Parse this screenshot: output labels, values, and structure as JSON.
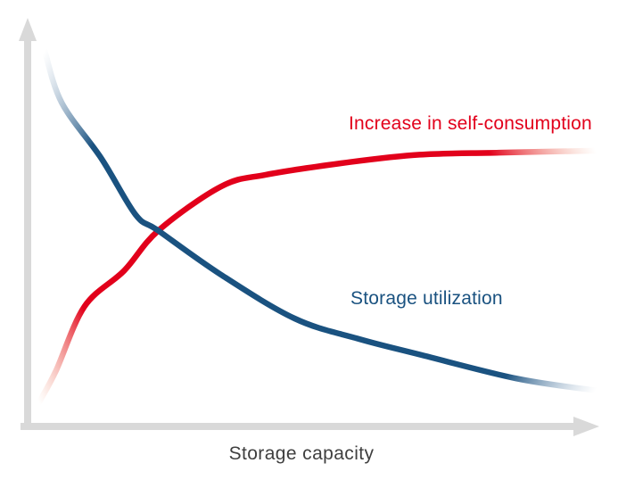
{
  "colors": {
    "red": "#e2001b",
    "red_fade": "#f09a74",
    "blue": "#1a5280",
    "blue_fade": "#9db4cc",
    "axis": "#d9d9d9",
    "axis_label_text": "#3f3f3f",
    "background": "#ffffff"
  },
  "chart_data": {
    "type": "line",
    "title": "",
    "xlabel": "Storage capacity",
    "ylabel": "",
    "x_ticks": [],
    "y_ticks": [],
    "grid": false,
    "axis_arrows": true,
    "legend": "inline annotations next to curves",
    "x_range_normalized": [
      0,
      1
    ],
    "y_range_normalized": [
      0,
      1
    ],
    "crossing_point_normalized": [
      0.23,
      0.49
    ],
    "series": [
      {
        "name": "Increase in self-consumption",
        "color": "#e2001b",
        "trend": "rising, saturating toward an asymptote; line fades out at both ends",
        "points_normalized": [
          [
            0.02,
            0.06
          ],
          [
            0.05,
            0.14
          ],
          [
            0.1,
            0.3
          ],
          [
            0.17,
            0.39
          ],
          [
            0.23,
            0.49
          ],
          [
            0.34,
            0.6
          ],
          [
            0.42,
            0.63
          ],
          [
            0.56,
            0.66
          ],
          [
            0.69,
            0.68
          ],
          [
            0.83,
            0.685
          ],
          [
            1.0,
            0.69
          ]
        ]
      },
      {
        "name": "Storage utilization",
        "color": "#1a5280",
        "trend": "falling convex decay; line fades out at both ends",
        "points_normalized": [
          [
            0.03,
            0.94
          ],
          [
            0.06,
            0.81
          ],
          [
            0.13,
            0.67
          ],
          [
            0.19,
            0.53
          ],
          [
            0.23,
            0.49
          ],
          [
            0.34,
            0.38
          ],
          [
            0.47,
            0.27
          ],
          [
            0.58,
            0.22
          ],
          [
            0.69,
            0.18
          ],
          [
            0.86,
            0.12
          ],
          [
            1.0,
            0.09
          ]
        ]
      }
    ]
  }
}
